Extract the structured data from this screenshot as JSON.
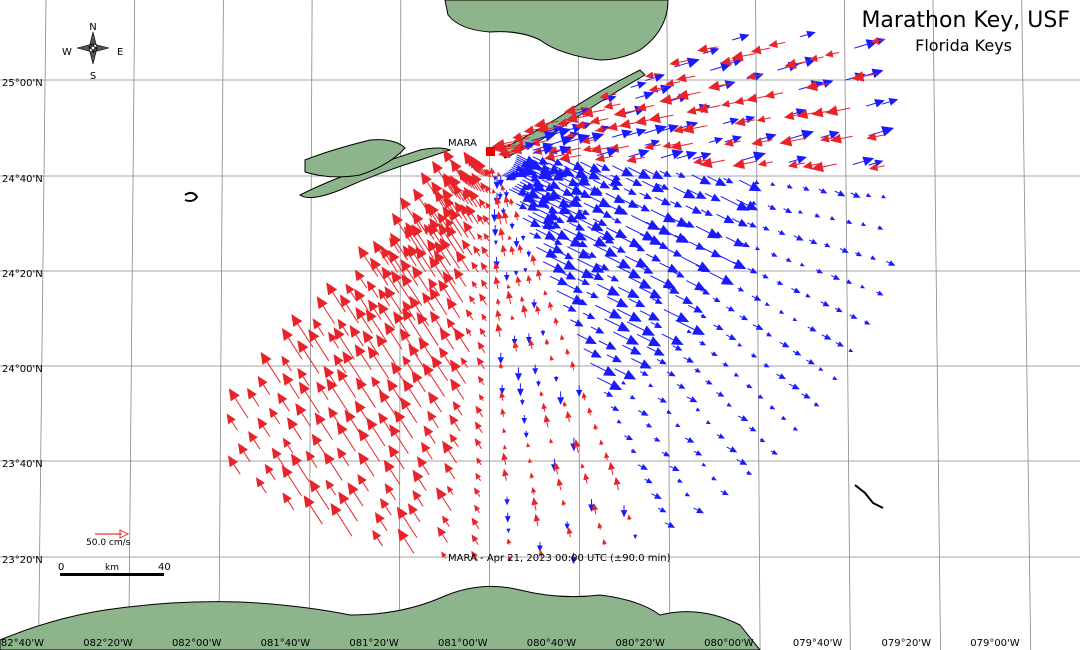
{
  "header": {
    "title": "Marathon Key, USF",
    "subtitle": "Florida Keys"
  },
  "site": "MARA",
  "compass": {
    "n": "N",
    "s": "S",
    "e": "E",
    "w": "W"
  },
  "lat_labels": [
    "25°00'N",
    "24°40'N",
    "24°20'N",
    "24°00'N",
    "23°40'N",
    "23°20'N"
  ],
  "lon_labels": [
    "82°40'W",
    "082°20'W",
    "082°00'W",
    "081°40'W",
    "081°20'W",
    "081°00'W",
    "080°40'W",
    "080°20'W",
    "080°00'W",
    "079°40'W",
    "079°20'W",
    "079°00'W"
  ],
  "legend": {
    "vector_scale": "50.0 cm/s",
    "scale_start": "0",
    "scale_unit": "km",
    "scale_end": "40"
  },
  "timestamp": "MARA - Apr 21, 2023 00:00 UTC (±90.0 min)"
}
